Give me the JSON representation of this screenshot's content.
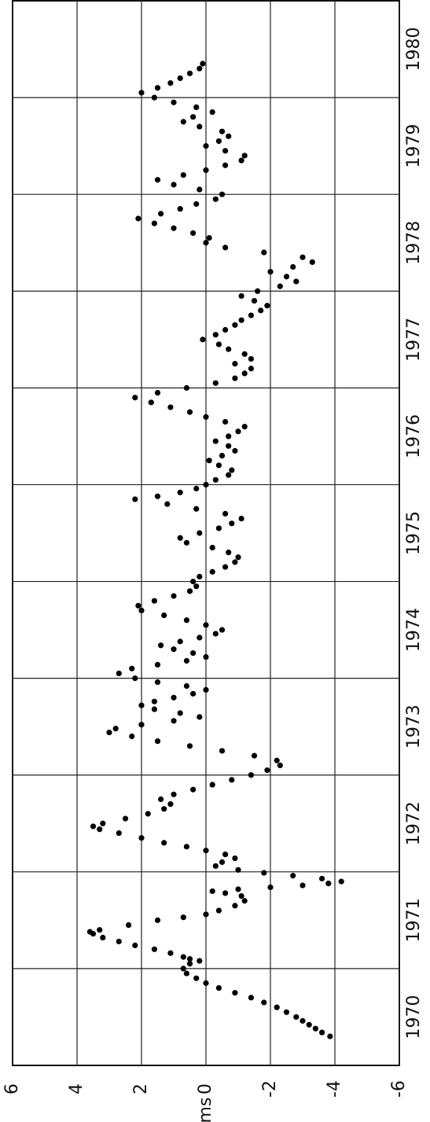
{
  "chart_data": {
    "type": "scatter",
    "ylabel": "ms",
    "color": "#000000",
    "grid": true,
    "xlim": [
      1969.5,
      1980.5
    ],
    "xticks": [
      1970,
      1971,
      1972,
      1973,
      1974,
      1975,
      1976,
      1977,
      1978,
      1979,
      1980
    ],
    "xgrid": [
      1970.5,
      1971.5,
      1972.5,
      1973.5,
      1974.5,
      1975.5,
      1976.5,
      1977.5,
      1978.5,
      1979.5
    ],
    "ylim": [
      -6,
      6
    ],
    "yticks": [
      6,
      4,
      2,
      0,
      -2,
      -4,
      -6
    ],
    "x": [
      1969.8,
      1969.84,
      1969.88,
      1969.92,
      1969.96,
      1970.0,
      1970.05,
      1970.1,
      1970.15,
      1970.2,
      1970.25,
      1970.3,
      1970.35,
      1970.4,
      1970.45,
      1970.5,
      1970.55,
      1970.58,
      1970.6,
      1970.62,
      1970.66,
      1970.7,
      1970.74,
      1970.78,
      1970.82,
      1970.86,
      1970.88,
      1970.9,
      1970.95,
      1971.0,
      1971.03,
      1971.06,
      1971.1,
      1971.15,
      1971.2,
      1971.25,
      1971.28,
      1971.3,
      1971.32,
      1971.34,
      1971.36,
      1971.38,
      1971.4,
      1971.43,
      1971.46,
      1971.49,
      1971.52,
      1971.56,
      1971.6,
      1971.64,
      1971.68,
      1971.72,
      1971.76,
      1971.8,
      1971.85,
      1971.9,
      1971.94,
      1971.97,
      1972.0,
      1972.05,
      1972.1,
      1972.15,
      1972.2,
      1972.25,
      1972.3,
      1972.35,
      1972.4,
      1972.45,
      1972.5,
      1972.55,
      1972.6,
      1972.65,
      1972.7,
      1972.75,
      1972.8,
      1972.85,
      1972.9,
      1972.94,
      1972.98,
      1973.02,
      1973.06,
      1973.1,
      1973.14,
      1973.18,
      1973.22,
      1973.26,
      1973.3,
      1973.34,
      1973.38,
      1973.42,
      1973.46,
      1973.5,
      1973.55,
      1973.6,
      1973.64,
      1973.68,
      1973.72,
      1973.76,
      1973.8,
      1973.84,
      1973.88,
      1973.92,
      1973.96,
      1974.0,
      1974.05,
      1974.1,
      1974.15,
      1974.2,
      1974.25,
      1974.3,
      1974.35,
      1974.4,
      1974.45,
      1974.5,
      1974.55,
      1974.6,
      1974.65,
      1974.7,
      1974.75,
      1974.8,
      1974.85,
      1974.9,
      1974.95,
      1975.0,
      1975.05,
      1975.1,
      1975.15,
      1975.2,
      1975.25,
      1975.3,
      1975.35,
      1975.38,
      1975.42,
      1975.46,
      1975.5,
      1975.55,
      1975.6,
      1975.65,
      1975.7,
      1975.75,
      1975.8,
      1975.85,
      1975.9,
      1975.95,
      1976.0,
      1976.05,
      1976.1,
      1976.15,
      1976.2,
      1976.25,
      1976.3,
      1976.35,
      1976.4,
      1976.45,
      1976.5,
      1976.55,
      1976.6,
      1976.65,
      1976.7,
      1976.75,
      1976.8,
      1976.85,
      1976.9,
      1976.95,
      1977.0,
      1977.05,
      1977.1,
      1977.15,
      1977.2,
      1977.25,
      1977.3,
      1977.35,
      1977.4,
      1977.45,
      1977.5,
      1977.55,
      1977.6,
      1977.65,
      1977.7,
      1977.75,
      1977.8,
      1977.85,
      1977.9,
      1977.95,
      1978.0,
      1978.05,
      1978.1,
      1978.15,
      1978.2,
      1978.25,
      1978.3,
      1978.35,
      1978.4,
      1978.45,
      1978.5,
      1978.55,
      1978.6,
      1978.65,
      1978.7,
      1978.75,
      1978.8,
      1978.85,
      1978.9,
      1978.95,
      1979.0,
      1979.05,
      1979.1,
      1979.15,
      1979.2,
      1979.25,
      1979.3,
      1979.35,
      1979.4,
      1979.45,
      1979.5,
      1979.55,
      1979.6,
      1979.65,
      1979.7,
      1979.75,
      1979.8,
      1979.85
    ],
    "values": [
      -3.85,
      -3.6,
      -3.4,
      -3.2,
      -3.0,
      -2.8,
      -2.5,
      -2.2,
      -1.8,
      -1.4,
      -0.9,
      -0.4,
      0.0,
      0.3,
      0.6,
      0.7,
      0.5,
      0.2,
      0.5,
      0.7,
      1.1,
      1.6,
      2.2,
      2.7,
      3.2,
      3.5,
      3.6,
      3.3,
      2.4,
      1.5,
      0.7,
      0.0,
      -0.4,
      -0.9,
      -1.2,
      -1.1,
      -0.6,
      -0.2,
      -1.0,
      -2.0,
      -3.0,
      -3.8,
      -4.2,
      -3.6,
      -2.7,
      -1.8,
      -1.0,
      -0.3,
      -0.5,
      -0.9,
      -0.6,
      0.0,
      0.6,
      1.3,
      2.0,
      2.7,
      3.3,
      3.5,
      3.2,
      2.5,
      1.8,
      1.3,
      1.1,
      1.4,
      1.0,
      0.4,
      -0.2,
      -0.8,
      -1.4,
      -1.9,
      -2.3,
      -2.2,
      -1.5,
      -0.5,
      0.5,
      1.5,
      2.3,
      3.0,
      2.8,
      2.0,
      1.0,
      0.2,
      0.8,
      1.6,
      2.0,
      1.6,
      1.0,
      0.4,
      0.0,
      0.6,
      1.5,
      2.2,
      2.7,
      2.3,
      1.5,
      0.6,
      0.0,
      0.4,
      1.0,
      1.4,
      0.8,
      0.2,
      -0.3,
      -0.5,
      0.0,
      0.6,
      1.3,
      2.0,
      2.1,
      1.6,
      1.0,
      0.5,
      0.3,
      0.4,
      0.2,
      -0.2,
      -0.6,
      -0.9,
      -1.0,
      -0.7,
      -0.2,
      0.6,
      0.8,
      0.2,
      -0.4,
      -0.8,
      -1.1,
      -0.6,
      0.3,
      1.2,
      2.2,
      1.5,
      0.8,
      0.3,
      0.0,
      -0.3,
      -0.7,
      -0.8,
      -0.4,
      -0.1,
      -0.5,
      -0.9,
      -0.7,
      -0.3,
      -0.7,
      -1.0,
      -1.2,
      -0.6,
      0.0,
      0.5,
      1.1,
      1.7,
      2.2,
      1.5,
      0.6,
      -0.3,
      -0.9,
      -1.2,
      -1.4,
      -0.9,
      -1.4,
      -1.2,
      -0.7,
      -0.4,
      0.1,
      -0.3,
      -0.6,
      -0.9,
      -1.1,
      -1.4,
      -1.7,
      -1.9,
      -1.5,
      -1.1,
      -1.6,
      -2.3,
      -2.8,
      -2.5,
      -2.0,
      -2.7,
      -3.3,
      -3.0,
      -1.8,
      -0.6,
      0.0,
      -0.1,
      0.4,
      1.0,
      1.6,
      2.1,
      1.4,
      0.8,
      0.3,
      -0.3,
      -0.5,
      0.2,
      1.0,
      1.5,
      0.7,
      0.0,
      -0.6,
      -1.1,
      -1.2,
      -0.6,
      0.0,
      -0.4,
      -0.7,
      -0.5,
      0.2,
      0.7,
      0.4,
      -0.2,
      0.3,
      1.0,
      1.6,
      2.0,
      1.5,
      1.1,
      0.8,
      0.5,
      0.2,
      0.1
    ]
  }
}
